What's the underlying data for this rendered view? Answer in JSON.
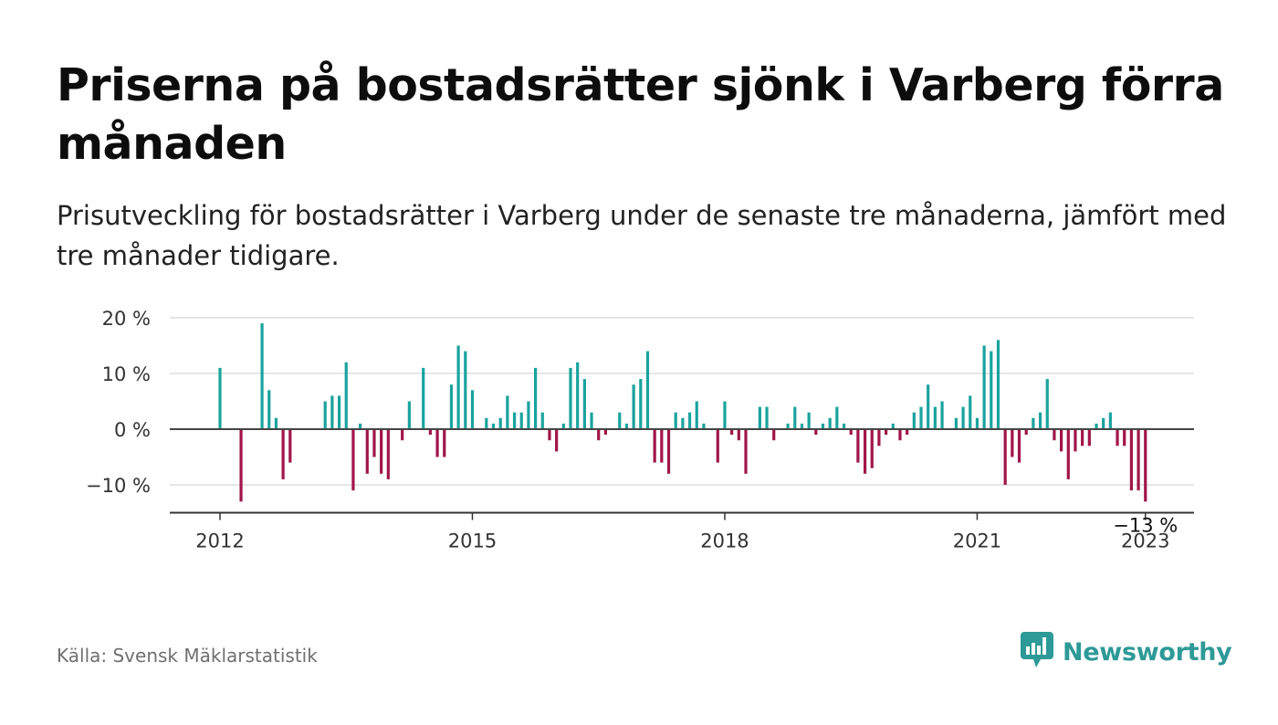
{
  "title": "Priserna på bostadsrätter sjönk i Varberg förra månaden",
  "subtitle": "Prisutveckling för bostadsrätter i Varberg under de senaste tre månaderna, jämfört med tre månader tidigare.",
  "source": "Källa: Svensk Mäklarstatistik",
  "brand": {
    "name": "Newsworthy",
    "icon": "newsworthy-logo-icon"
  },
  "colors": {
    "positive": "#1aa39e",
    "negative": "#a1154a",
    "gridline": "#dddddd",
    "axis": "#444444",
    "brand": "#2e9a97"
  },
  "chart_data": {
    "type": "bar",
    "title": "",
    "xlabel": "",
    "ylabel": "",
    "x_start": "2012-01",
    "y_ticks": [
      20,
      10,
      0,
      -10
    ],
    "y_tick_labels": [
      "20 %",
      "10 %",
      "0 %",
      "−10 %"
    ],
    "x_ticks": [
      "2012",
      "2015",
      "2018",
      "2021",
      "2023"
    ],
    "ylim": [
      -15,
      20
    ],
    "grid": true,
    "annotation": {
      "label": "−13 %",
      "value": -13
    },
    "series": [
      {
        "values": [
          11,
          0,
          0,
          -13,
          0,
          0,
          19,
          7,
          2,
          -9,
          -6,
          0,
          0,
          0,
          0,
          5,
          6,
          6,
          12,
          -11,
          1,
          -8,
          -5,
          -8,
          -9,
          0,
          -2,
          5,
          0,
          11,
          -1,
          -5,
          -5,
          8,
          15,
          14,
          7,
          0,
          2,
          1,
          2,
          6,
          3,
          3,
          5,
          11,
          3,
          -2,
          -4,
          1,
          11,
          12,
          9,
          3,
          -2,
          -1,
          0,
          3,
          1,
          8,
          9,
          14,
          -6,
          -6,
          -8,
          3,
          2,
          3,
          5,
          1,
          0,
          -6,
          5,
          -1,
          -2,
          -8,
          0,
          4,
          4,
          -2,
          0,
          1,
          4,
          1,
          3,
          -1,
          1,
          2,
          4,
          1,
          -1,
          -6,
          -8,
          -7,
          -3,
          -1,
          1,
          -2,
          -1,
          3,
          4,
          8,
          4,
          5,
          0,
          2,
          4,
          6,
          2,
          15,
          14,
          16,
          -10,
          -5,
          -6,
          -1,
          2,
          3,
          9,
          -2,
          -4,
          -9,
          -4,
          -3,
          -3,
          1,
          2,
          3,
          -3,
          -3,
          -11,
          -11,
          -13
        ]
      }
    ]
  }
}
